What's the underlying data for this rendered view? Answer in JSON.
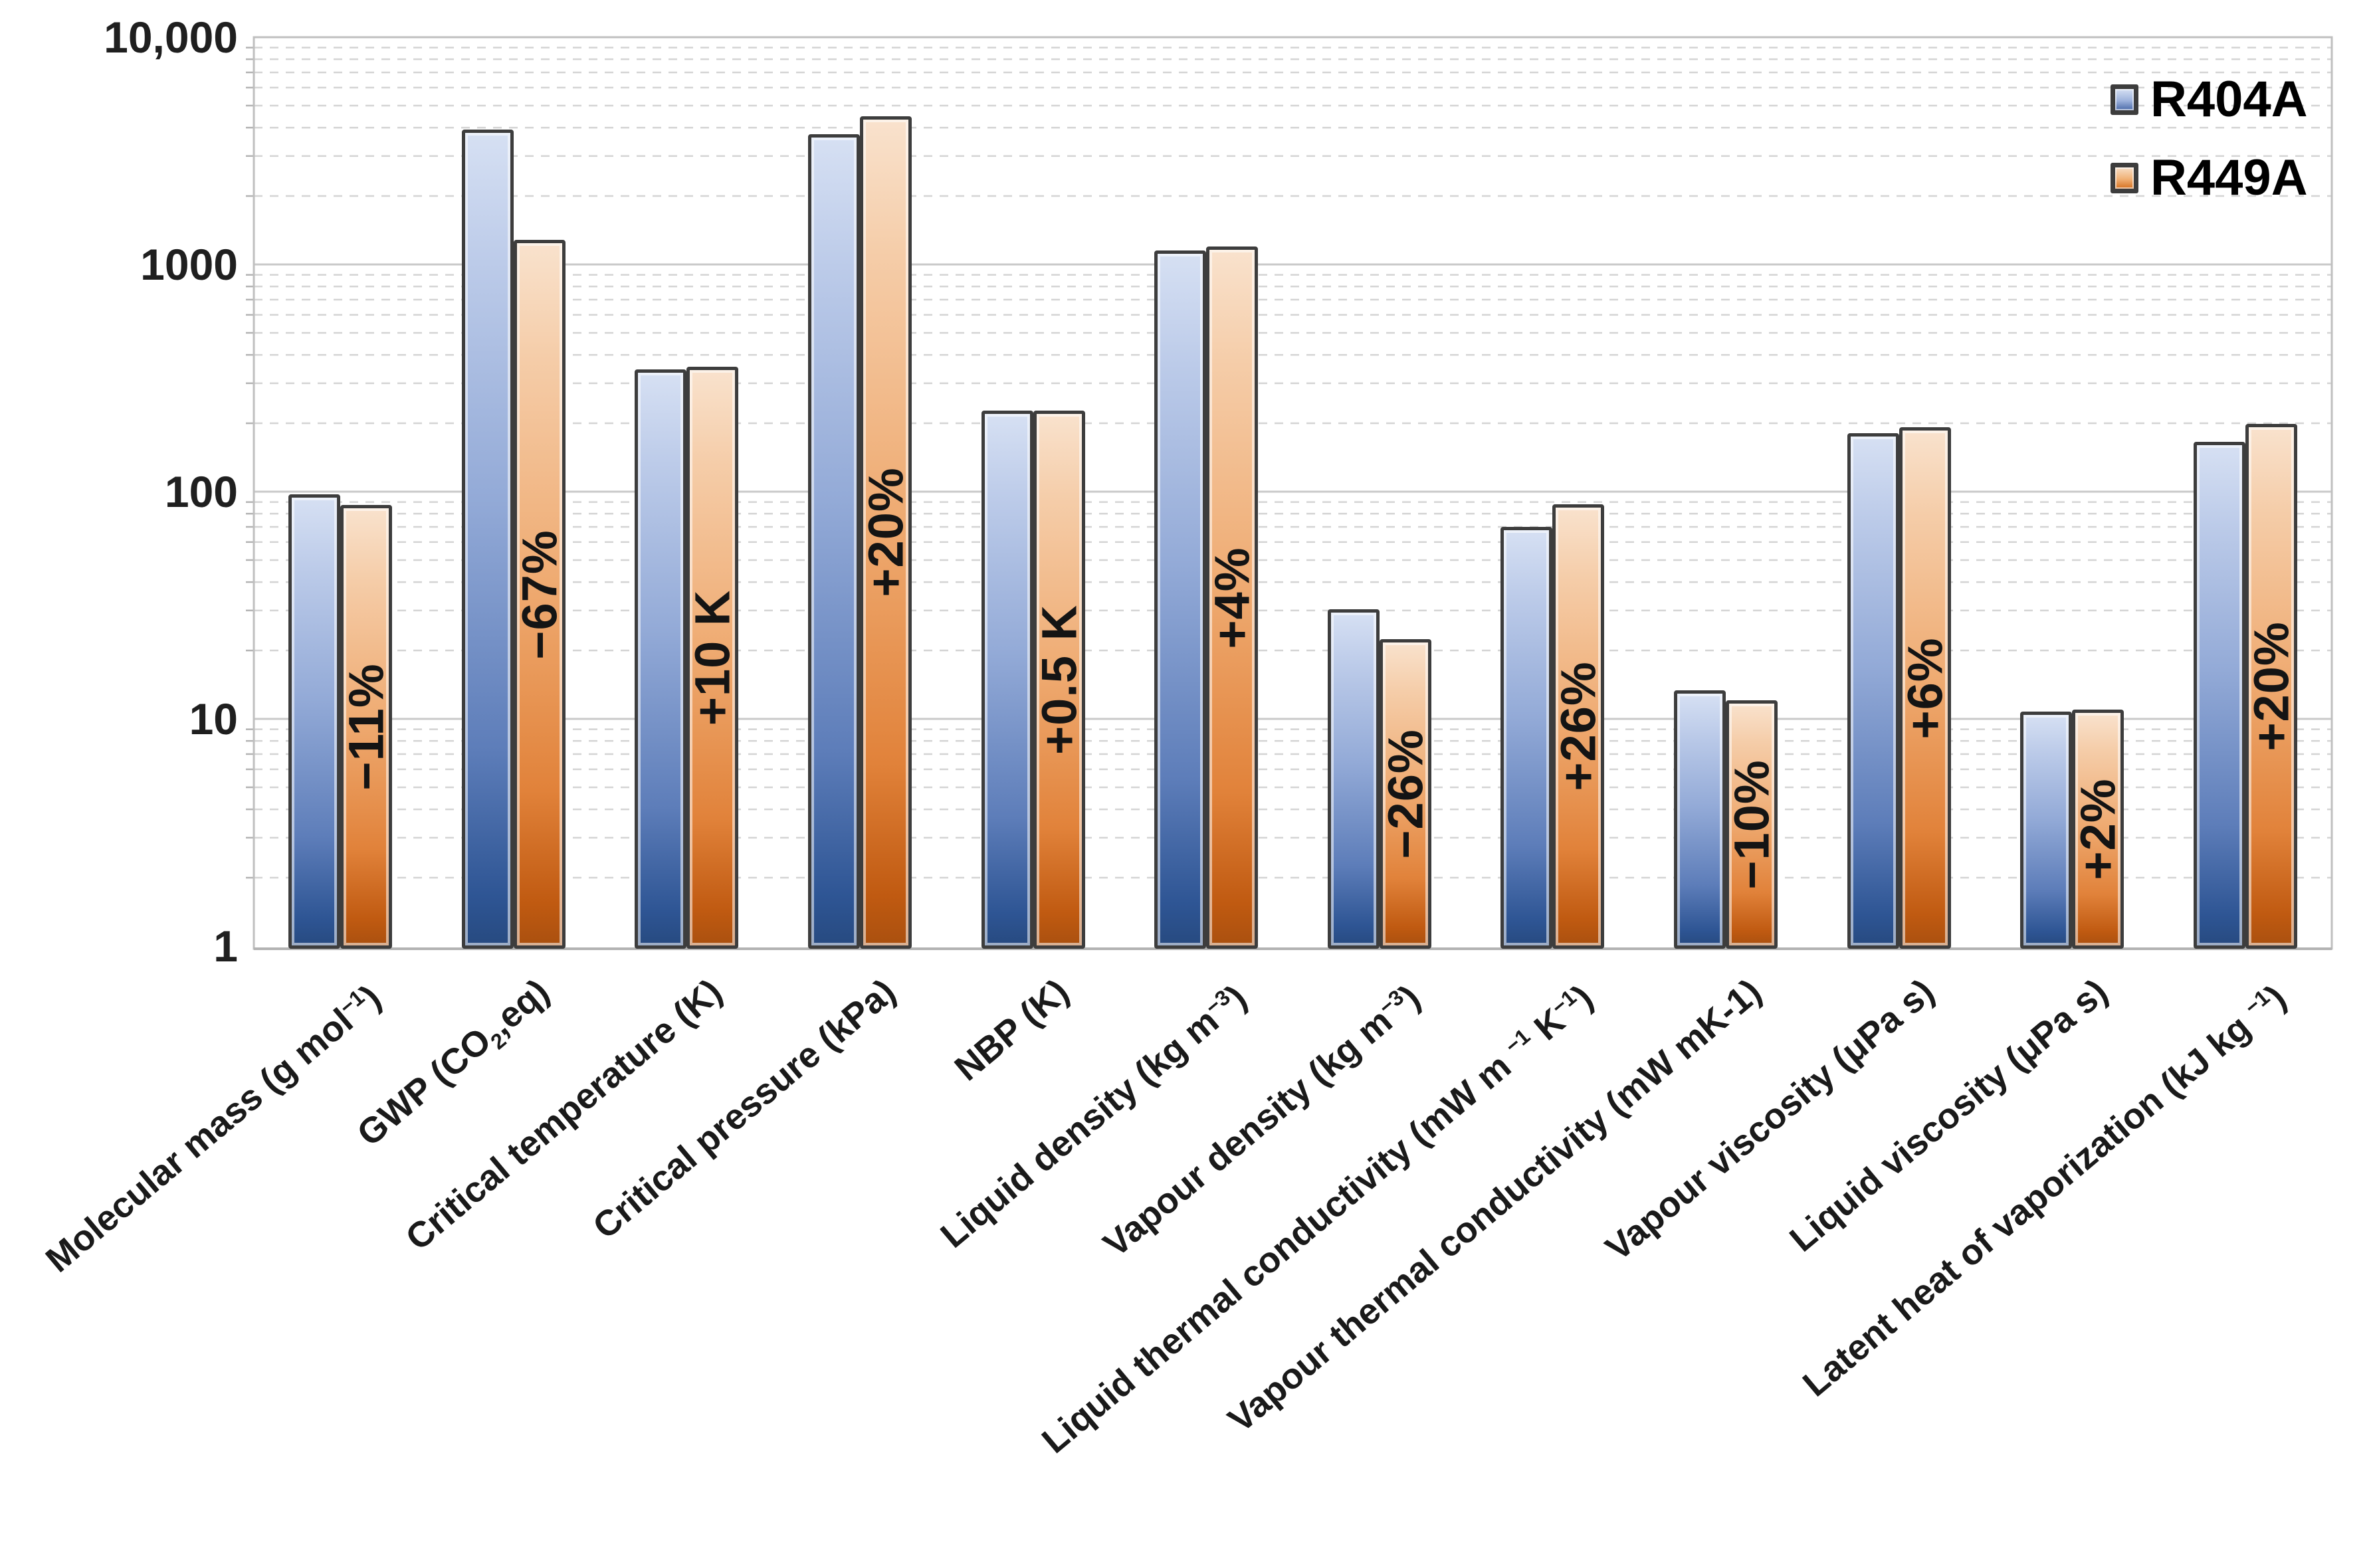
{
  "chart_data": {
    "type": "bar",
    "y_scale": "log",
    "ylim": [
      1,
      10000
    ],
    "ylabel": "",
    "xlabel": "",
    "grid": "major-solid-minor-dashed",
    "legend_position": "top-right-inside",
    "y_ticks": [
      {
        "value": 10000,
        "label": "10,000"
      },
      {
        "value": 1000,
        "label": "1000"
      },
      {
        "value": 100,
        "label": "100"
      },
      {
        "value": 10,
        "label": "10"
      },
      {
        "value": 1,
        "label": "1"
      }
    ],
    "series": [
      {
        "name": "R404A",
        "color_top": "#d6e0f3",
        "color_bottom": "#2e5594",
        "values": [
          97.6,
          3922,
          345.3,
          3735,
          226.9,
          1150,
          30.3,
          70,
          13.4,
          181,
          10.8,
          166
        ]
      },
      {
        "name": "R449A",
        "color_top": "#f9e2cd",
        "color_bottom": "#c05a11",
        "values": [
          87.2,
          1282,
          355.4,
          4500,
          227.4,
          1196,
          22.4,
          88,
          12.1,
          192,
          11.0,
          199
        ]
      }
    ],
    "annotations": [
      "−11%",
      "−67%",
      "+10 K",
      "+20%",
      "+0.5 K",
      "+4%",
      "−26%",
      "+26%",
      "−10%",
      "+6%",
      "+2%",
      "+20%"
    ],
    "categories": [
      {
        "key": "molecular-mass",
        "label": [
          {
            "t": "Molecular mass (g mol"
          },
          {
            "sup": "−1"
          },
          {
            "t": ")"
          }
        ]
      },
      {
        "key": "gwp",
        "label": [
          {
            "t": "GWP (CO"
          },
          {
            "sub": "2"
          },
          {
            "t": ",eq)"
          }
        ]
      },
      {
        "key": "critical-temperature",
        "label": [
          {
            "t": "Critical temperature (K)"
          }
        ]
      },
      {
        "key": "critical-pressure",
        "label": [
          {
            "t": "Critical pressure (kPa)"
          }
        ]
      },
      {
        "key": "nbp",
        "label": [
          {
            "t": "NBP (K)"
          }
        ]
      },
      {
        "key": "liquid-density",
        "label": [
          {
            "t": "Liquid density (kg m"
          },
          {
            "sup": "−3"
          },
          {
            "t": ")"
          }
        ]
      },
      {
        "key": "vapour-density",
        "label": [
          {
            "t": "Vapour density (kg m"
          },
          {
            "sup": "−3"
          },
          {
            "t": ")"
          }
        ]
      },
      {
        "key": "liquid-thermal-conductivity",
        "label": [
          {
            "t": "Liquid thermal conductivity (mW m "
          },
          {
            "sup": "−1"
          },
          {
            "t": " K"
          },
          {
            "sup": "−1"
          },
          {
            "t": ")"
          }
        ]
      },
      {
        "key": "vapour-thermal-conductivity",
        "label": [
          {
            "t": "Vapour thermal conductivity (mW mK-1)"
          }
        ]
      },
      {
        "key": "vapour-viscosity",
        "label": [
          {
            "t": "Vapour viscosity (μPa s)"
          }
        ]
      },
      {
        "key": "liquid-viscosity",
        "label": [
          {
            "t": "Liquid viscosity (μPa s)"
          }
        ]
      },
      {
        "key": "latent-heat",
        "label": [
          {
            "t": "Latent heat of vaporization (kJ kg "
          },
          {
            "sup": "−1"
          },
          {
            "t": ")"
          }
        ]
      }
    ],
    "colors": {
      "bar_outline": "#3d3d3d",
      "major_gridline": "#c9c9c9",
      "minor_gridline": "#d4d4d4",
      "plot_border": "#bfbfbf",
      "axis_line": "#b3b3b3",
      "tick_text": "#1f1f1f",
      "annotation_text": "#141414"
    }
  }
}
